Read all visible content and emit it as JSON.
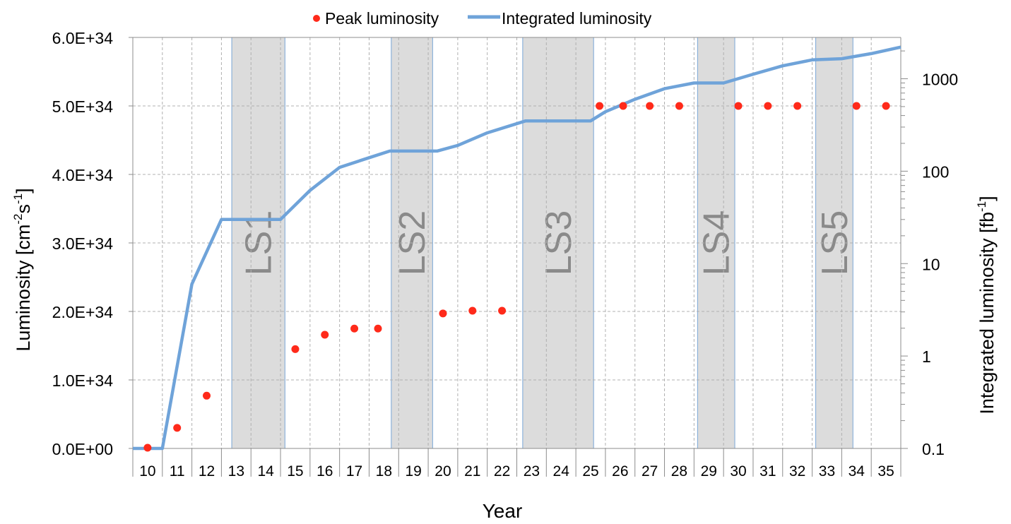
{
  "chart_data": {
    "type": "scatter+line",
    "xlabel": "Year",
    "ylabel_left_main": "Luminosity [cm",
    "ylabel_left_sup1": "-2",
    "ylabel_left_mid": "s",
    "ylabel_left_sup2": "-1",
    "ylabel_left_end": "]",
    "ylabel_right_main": "Integrated luminosity [fb",
    "ylabel_right_sup": "-1",
    "ylabel_right_end": "]",
    "categories": [
      "10",
      "11",
      "12",
      "13",
      "14",
      "15",
      "16",
      "17",
      "18",
      "19",
      "20",
      "21",
      "22",
      "23",
      "24",
      "25",
      "26",
      "27",
      "28",
      "29",
      "30",
      "31",
      "32",
      "33",
      "34",
      "35"
    ],
    "left_axis": {
      "min": 0,
      "max": 6e+34,
      "ticks": [
        0,
        1e+34,
        2e+34,
        3e+34,
        4e+34,
        5e+34,
        6e+34
      ],
      "tick_labels": [
        "0.0E+00",
        "1.0E+34",
        "2.0E+34",
        "3.0E+34",
        "4.0E+34",
        "5.0E+34",
        "6.0E+34"
      ]
    },
    "right_axis": {
      "scale": "log",
      "min": 0.1,
      "max": 2800,
      "ticks": [
        0.1,
        1,
        10,
        100,
        1000
      ],
      "tick_labels": [
        "0.1",
        "1",
        "10",
        "100",
        "1000"
      ]
    },
    "legend": {
      "placement": "top-center"
    },
    "series": [
      {
        "name": "Peak luminosity",
        "kind": "scatter",
        "axis": "left",
        "color": "#ff2a1a",
        "points": [
          {
            "x": 10.0,
            "y": 1e+32
          },
          {
            "x": 11.0,
            "y": 3e+33
          },
          {
            "x": 12.0,
            "y": 7.7e+33
          },
          {
            "x": 15.0,
            "y": 1.45e+34
          },
          {
            "x": 16.0,
            "y": 1.66e+34
          },
          {
            "x": 17.0,
            "y": 1.75e+34
          },
          {
            "x": 17.8,
            "y": 1.75e+34
          },
          {
            "x": 20.0,
            "y": 1.97e+34
          },
          {
            "x": 21.0,
            "y": 2.01e+34
          },
          {
            "x": 22.0,
            "y": 2.01e+34
          },
          {
            "x": 25.3,
            "y": 5e+34
          },
          {
            "x": 26.1,
            "y": 5e+34
          },
          {
            "x": 27.0,
            "y": 5e+34
          },
          {
            "x": 28.0,
            "y": 5e+34
          },
          {
            "x": 30.0,
            "y": 5e+34
          },
          {
            "x": 31.0,
            "y": 5e+34
          },
          {
            "x": 32.0,
            "y": 5e+34
          },
          {
            "x": 34.0,
            "y": 5e+34
          },
          {
            "x": 35.0,
            "y": 5e+34
          }
        ]
      },
      {
        "name": "Integrated luminosity",
        "kind": "line",
        "axis": "right",
        "color": "#6fa3d9",
        "points": [
          {
            "x": 9.5,
            "y": 0.1
          },
          {
            "x": 10.5,
            "y": 0.1
          },
          {
            "x": 11.5,
            "y": 6
          },
          {
            "x": 12.5,
            "y": 30
          },
          {
            "x": 12.8,
            "y": 30
          },
          {
            "x": 14.5,
            "y": 30
          },
          {
            "x": 15.5,
            "y": 62
          },
          {
            "x": 16.5,
            "y": 110
          },
          {
            "x": 17.5,
            "y": 140
          },
          {
            "x": 18.2,
            "y": 165
          },
          {
            "x": 19.8,
            "y": 165
          },
          {
            "x": 20.5,
            "y": 190
          },
          {
            "x": 21.5,
            "y": 260
          },
          {
            "x": 22.8,
            "y": 350
          },
          {
            "x": 25.0,
            "y": 350
          },
          {
            "x": 25.5,
            "y": 440
          },
          {
            "x": 26.5,
            "y": 600
          },
          {
            "x": 27.5,
            "y": 780
          },
          {
            "x": 28.5,
            "y": 900
          },
          {
            "x": 29.5,
            "y": 900
          },
          {
            "x": 30.5,
            "y": 1120
          },
          {
            "x": 31.5,
            "y": 1380
          },
          {
            "x": 32.5,
            "y": 1600
          },
          {
            "x": 33.5,
            "y": 1650
          },
          {
            "x": 34.5,
            "y": 1870
          },
          {
            "x": 35.5,
            "y": 2200
          }
        ]
      }
    ],
    "shutdowns": [
      {
        "label": "LS1",
        "from": 12.85,
        "to": 14.65
      },
      {
        "label": "LS2",
        "from": 18.25,
        "to": 19.65
      },
      {
        "label": "LS3",
        "from": 22.7,
        "to": 25.1
      },
      {
        "label": "LS4",
        "from": 28.62,
        "to": 29.88
      },
      {
        "label": "LS5",
        "from": 32.62,
        "to": 33.88
      }
    ],
    "grid": true,
    "colors": {
      "shutdown_fill": "#dcdcdc",
      "grid": "#b0b0b0",
      "axis": "#8c8c8c"
    }
  }
}
